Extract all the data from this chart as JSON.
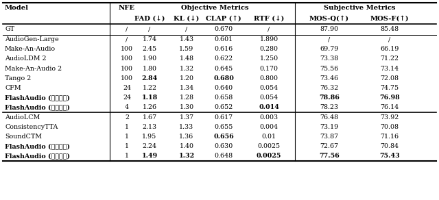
{
  "header1_model": "Model",
  "header1_nfe": "NFE",
  "header1_obj": "Objective Metrics",
  "header1_subj": "Subjective Metrics",
  "header2_cols": [
    "FAD (↓)",
    "KL (↓)",
    "CLAP (↑)",
    "RTF (↓)",
    "MOS-Q(↑)",
    "MOS-F(↑)"
  ],
  "gt_row": [
    "GT",
    "/",
    "/",
    "/",
    "0.670",
    "/",
    "87.90",
    "85.48"
  ],
  "g1_vals": [
    [
      "/",
      "1.74",
      "1.43",
      "0.601",
      "1.890",
      "/",
      "/"
    ],
    [
      "100",
      "2.45",
      "1.59",
      "0.616",
      "0.280",
      "69.79",
      "66.19"
    ],
    [
      "100",
      "1.90",
      "1.48",
      "0.622",
      "1.250",
      "73.38",
      "71.22"
    ],
    [
      "100",
      "1.80",
      "1.32",
      "0.645",
      "0.170",
      "75.56",
      "73.14"
    ],
    [
      "100",
      "2.84",
      "1.20",
      "0.680",
      "0.800",
      "73.46",
      "72.08"
    ],
    [
      "24",
      "1.22",
      "1.34",
      "0.640",
      "0.054",
      "76.32",
      "74.75"
    ],
    [
      "24",
      "1.18",
      "1.28",
      "0.658",
      "0.054",
      "78.86",
      "76.98"
    ],
    [
      "4",
      "1.26",
      "1.30",
      "0.652",
      "0.014",
      "78.23",
      "76.14"
    ]
  ],
  "g1_bold": [
    [],
    [],
    [],
    [],
    [
      2,
      4
    ],
    [],
    [
      2,
      6,
      7
    ],
    [
      5
    ]
  ],
  "g2_vals": [
    [
      "2",
      "1.67",
      "1.37",
      "0.617",
      "0.003",
      "76.48",
      "73.92"
    ],
    [
      "1",
      "2.13",
      "1.33",
      "0.655",
      "0.004",
      "73.19",
      "70.08"
    ],
    [
      "1",
      "1.95",
      "1.36",
      "0.656",
      "0.01",
      "73.87",
      "71.16"
    ],
    [
      "1",
      "2.24",
      "1.40",
      "0.630",
      "0.0025",
      "72.67",
      "70.84"
    ],
    [
      "1",
      "1.49",
      "1.32",
      "0.648",
      "0.0025",
      "77.56",
      "75.43"
    ]
  ],
  "g2_bold": [
    [],
    [],
    [
      4
    ],
    [],
    [
      2,
      3,
      5,
      6,
      7
    ]
  ],
  "background_color": "#ffffff"
}
